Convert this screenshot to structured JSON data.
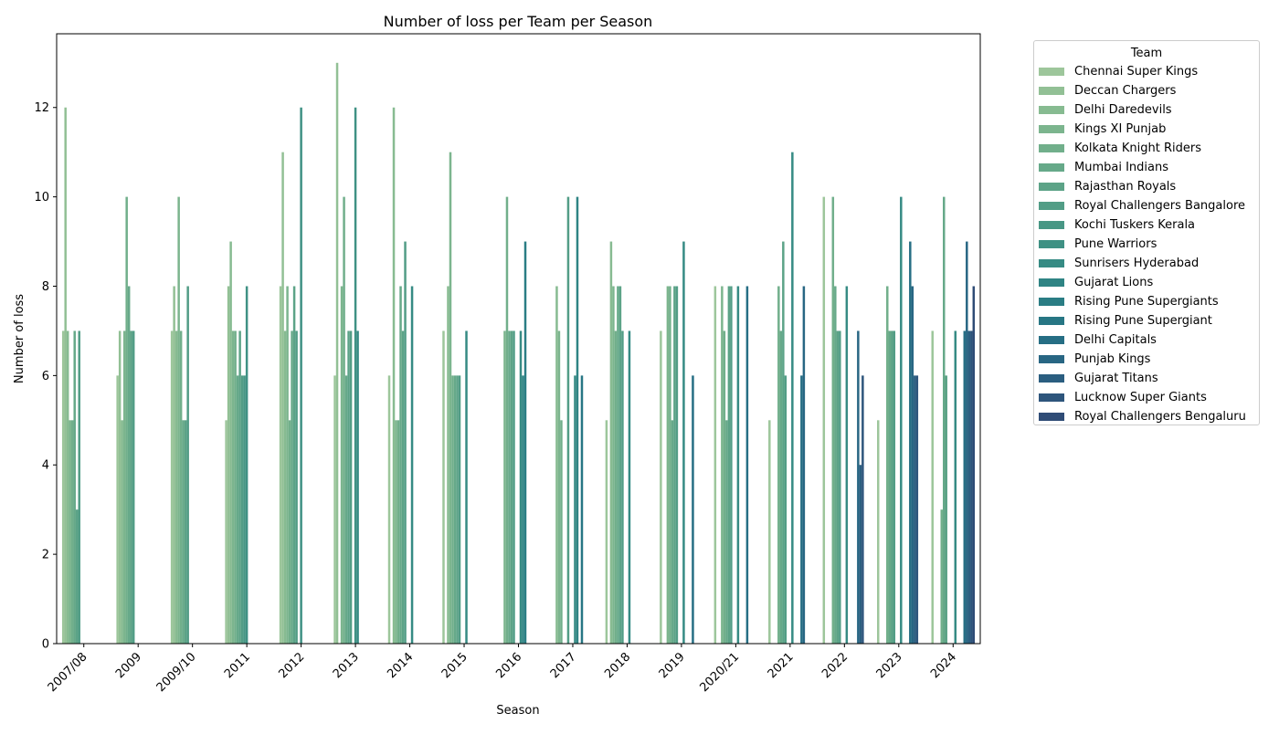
{
  "chart_data": {
    "type": "bar",
    "title": "Number of loss per Team per Season",
    "xlabel": "Season",
    "ylabel": "Number of loss",
    "ylim": [
      0,
      13.65
    ],
    "yticks": [
      0,
      2,
      4,
      6,
      8,
      10,
      12
    ],
    "grid": false,
    "legend_title": "Team",
    "legend_placement": "outside top-right",
    "categories": [
      "2007/08",
      "2009",
      "2009/10",
      "2011",
      "2012",
      "2013",
      "2014",
      "2015",
      "2016",
      "2017",
      "2018",
      "2019",
      "2020/21",
      "2021",
      "2022",
      "2023",
      "2024"
    ],
    "series": [
      {
        "name": "Chennai Super Kings",
        "color": "#9dc69b",
        "values": [
          7,
          6,
          7,
          5,
          8,
          6,
          6,
          7,
          null,
          null,
          5,
          7,
          8,
          5,
          10,
          5,
          7
        ]
      },
      {
        "name": "Deccan Chargers",
        "color": "#92c095",
        "values": [
          12,
          7,
          8,
          8,
          11,
          13,
          null,
          null,
          null,
          null,
          null,
          null,
          null,
          null,
          null,
          null,
          null
        ]
      },
      {
        "name": "Delhi Daredevils",
        "color": "#87bb91",
        "values": [
          7,
          5,
          7,
          9,
          7,
          null,
          12,
          8,
          null,
          8,
          9,
          null,
          null,
          null,
          null,
          null,
          null
        ]
      },
      {
        "name": "Kings XI Punjab",
        "color": "#7cb58e",
        "values": [
          5,
          7,
          10,
          7,
          8,
          8,
          5,
          11,
          7,
          7,
          8,
          8,
          8,
          null,
          null,
          null,
          null
        ]
      },
      {
        "name": "Kolkata Knight Riders",
        "color": "#71af8b",
        "values": [
          5,
          10,
          7,
          7,
          5,
          10,
          5,
          6,
          10,
          5,
          7,
          8,
          7,
          8,
          10,
          8,
          3
        ]
      },
      {
        "name": "Mumbai Indians",
        "color": "#66a989",
        "values": [
          7,
          8,
          5,
          6,
          7,
          6,
          8,
          6,
          7,
          null,
          8,
          5,
          5,
          7,
          8,
          7,
          10
        ]
      },
      {
        "name": "Rajasthan Royals",
        "color": "#5ca387",
        "values": [
          3,
          7,
          5,
          7,
          8,
          7,
          7,
          6,
          7,
          null,
          8,
          8,
          8,
          9,
          7,
          7,
          6
        ]
      },
      {
        "name": "Royal Challengers Bangalore",
        "color": "#529d86",
        "values": [
          7,
          7,
          8,
          6,
          7,
          7,
          9,
          6,
          7,
          10,
          7,
          8,
          8,
          6,
          7,
          7,
          null
        ]
      },
      {
        "name": "Kochi Tuskers Kerala",
        "color": "#489785",
        "values": [
          null,
          null,
          null,
          6,
          null,
          null,
          null,
          null,
          null,
          null,
          null,
          null,
          null,
          null,
          null,
          null,
          null
        ]
      },
      {
        "name": "Pune Warriors",
        "color": "#3f9184",
        "values": [
          null,
          null,
          null,
          8,
          12,
          12,
          null,
          null,
          null,
          null,
          null,
          null,
          null,
          null,
          null,
          null,
          null
        ]
      },
      {
        "name": "Sunrisers Hyderabad",
        "color": "#368b84",
        "values": [
          null,
          null,
          null,
          null,
          null,
          7,
          8,
          7,
          7,
          6,
          7,
          9,
          8,
          11,
          8,
          10,
          7
        ]
      },
      {
        "name": "Gujarat Lions",
        "color": "#2f8484",
        "values": [
          null,
          null,
          null,
          null,
          null,
          null,
          null,
          null,
          6,
          10,
          null,
          null,
          null,
          null,
          null,
          null,
          null
        ]
      },
      {
        "name": "Rising Pune Supergiants",
        "color": "#2a7d84",
        "values": [
          null,
          null,
          null,
          null,
          null,
          null,
          null,
          null,
          9,
          null,
          null,
          null,
          null,
          null,
          null,
          null,
          null
        ]
      },
      {
        "name": "Rising Pune Supergiant",
        "color": "#277684",
        "values": [
          null,
          null,
          null,
          null,
          null,
          null,
          null,
          null,
          null,
          6,
          null,
          null,
          null,
          null,
          null,
          null,
          null
        ]
      },
      {
        "name": "Delhi Capitals",
        "color": "#266e84",
        "values": [
          null,
          null,
          null,
          null,
          null,
          null,
          null,
          null,
          null,
          null,
          null,
          6,
          8,
          6,
          null,
          9,
          7
        ]
      },
      {
        "name": "Punjab Kings",
        "color": "#286683",
        "values": [
          null,
          null,
          null,
          null,
          null,
          null,
          null,
          null,
          null,
          null,
          null,
          null,
          null,
          8,
          7,
          8,
          9
        ]
      },
      {
        "name": "Gujarat Titans",
        "color": "#2b5e80",
        "values": [
          null,
          null,
          null,
          null,
          null,
          null,
          null,
          null,
          null,
          null,
          null,
          null,
          null,
          null,
          4,
          6,
          7
        ]
      },
      {
        "name": "Lucknow Super Giants",
        "color": "#2e557c",
        "values": [
          null,
          null,
          null,
          null,
          null,
          null,
          null,
          null,
          null,
          null,
          null,
          null,
          null,
          null,
          6,
          6,
          7
        ]
      },
      {
        "name": "Royal Challengers Bengaluru",
        "color": "#2f4c76",
        "values": [
          null,
          null,
          null,
          null,
          null,
          null,
          null,
          null,
          null,
          null,
          null,
          null,
          null,
          null,
          null,
          null,
          8
        ]
      }
    ]
  }
}
